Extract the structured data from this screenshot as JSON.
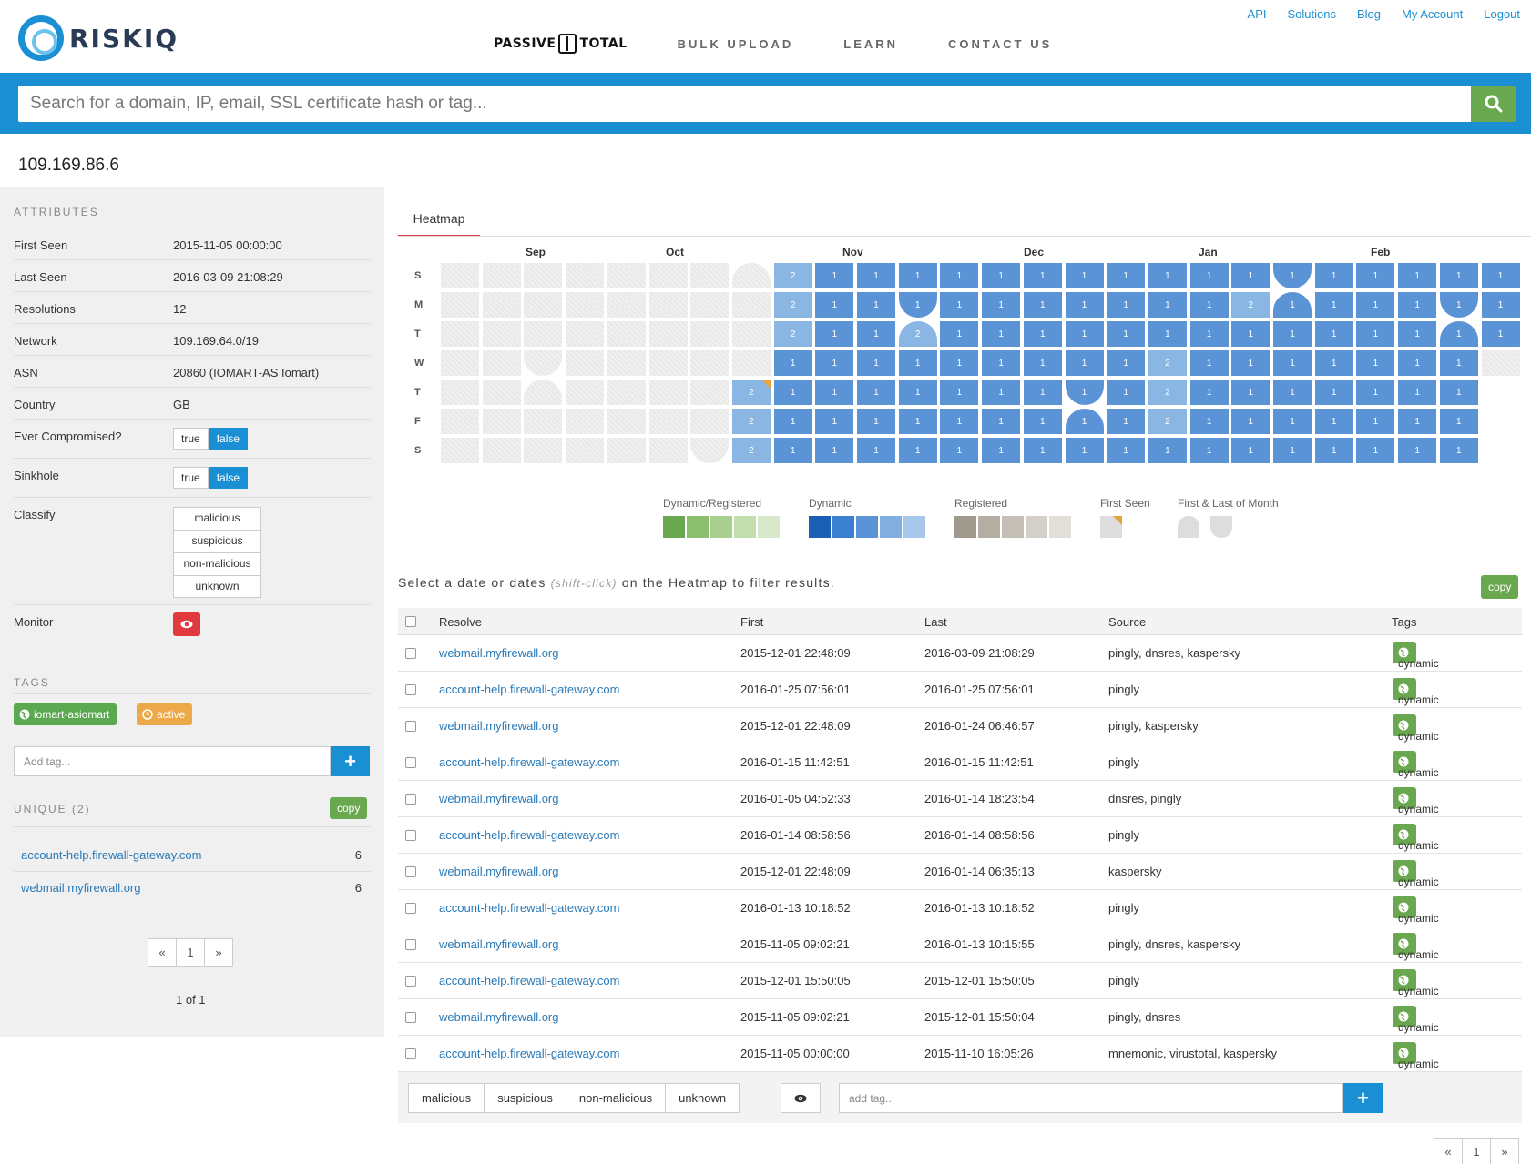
{
  "header": {
    "brand": "RISKIQ",
    "product": "PASSIVE",
    "product2": "TOTAL",
    "nav": [
      "BULK UPLOAD",
      "LEARN",
      "CONTACT US"
    ],
    "top_links": [
      "API",
      "Solutions",
      "Blog",
      "My Account",
      "Logout"
    ]
  },
  "search": {
    "placeholder": "Search for a domain, IP, email, SSL certificate hash or tag..."
  },
  "title": "109.169.86.6",
  "sidebar": {
    "attributes_label": "ATTRIBUTES",
    "attributes": [
      {
        "key": "First Seen",
        "value": "2015-11-05 00:00:00"
      },
      {
        "key": "Last Seen",
        "value": "2016-03-09 21:08:29"
      },
      {
        "key": "Resolutions",
        "value": "12"
      },
      {
        "key": "Network",
        "value": "109.169.64.0/19"
      },
      {
        "key": "ASN",
        "value": "20860 (IOMART-AS Iomart)"
      },
      {
        "key": "Country",
        "value": "GB"
      }
    ],
    "ever_compromised": {
      "label": "Ever Compromised?",
      "true": "true",
      "false": "false",
      "selected": "false"
    },
    "sinkhole": {
      "label": "Sinkhole",
      "true": "true",
      "false": "false",
      "selected": "false"
    },
    "classify": {
      "label": "Classify",
      "options": [
        "malicious",
        "suspicious",
        "non-malicious",
        "unknown"
      ]
    },
    "monitor_label": "Monitor",
    "tags_label": "TAGS",
    "tags": [
      {
        "label": "iomart-asiomart",
        "color": "#5aa84f",
        "icon": "globe-icon"
      },
      {
        "label": "active",
        "color": "#eda949",
        "icon": "clock-icon"
      }
    ],
    "add_tag_placeholder": "Add tag...",
    "unique_label": "UNIQUE (2)",
    "copy_label": "copy",
    "unique": [
      {
        "domain": "account-help.firewall-gateway.com",
        "count": "6"
      },
      {
        "domain": "webmail.myfirewall.org",
        "count": "6"
      }
    ],
    "pager": {
      "prev": "«",
      "page": "1",
      "next": "»"
    },
    "page_info": "1 of 1"
  },
  "heatmap": {
    "tab": "Heatmap",
    "months": [
      "Sep",
      "Oct",
      "Nov",
      "Dec",
      "Jan",
      "Feb"
    ],
    "days": [
      "S",
      "M",
      "T",
      "W",
      "T",
      "F",
      "S"
    ],
    "colors": {
      "dynamic_dark": "#5b94d6",
      "dynamic_light": "#8ab6e3",
      "first_seen": "#e8a33d"
    },
    "legend": {
      "dyn_reg": "Dynamic/Registered",
      "dynamic": "Dynamic",
      "registered": "Registered",
      "first_seen": "First Seen",
      "first_last": "First & Last of Month",
      "dyn_reg_colors": [
        "#6aa84f",
        "#8cbf70",
        "#a8cf90",
        "#c2ddae",
        "#d8e9cb"
      ],
      "dynamic_colors": [
        "#1a5fb4",
        "#3a7fd0",
        "#5b94d6",
        "#82afe0",
        "#a7c8ea"
      ],
      "registered_colors": [
        "#a09a8e",
        "#b3ada2",
        "#c4bfb6",
        "#d4d0c9",
        "#e2dfda"
      ]
    }
  },
  "filter_note": {
    "pre": "Select a date or dates",
    "hint": "(shift-click)",
    "post": "on the Heatmap to filter results."
  },
  "table": {
    "copy_label": "copy",
    "columns": [
      "Resolve",
      "First",
      "Last",
      "Source",
      "Tags"
    ],
    "rows": [
      {
        "resolve": "webmail.myfirewall.org",
        "first": "2015-12-01 22:48:09",
        "last": "2016-03-09 21:08:29",
        "source": "pingly, dnsres, kaspersky",
        "tag": "dynamic"
      },
      {
        "resolve": "account-help.firewall-gateway.com",
        "first": "2016-01-25 07:56:01",
        "last": "2016-01-25 07:56:01",
        "source": "pingly",
        "tag": "dynamic"
      },
      {
        "resolve": "webmail.myfirewall.org",
        "first": "2015-12-01 22:48:09",
        "last": "2016-01-24 06:46:57",
        "source": "pingly, kaspersky",
        "tag": "dynamic"
      },
      {
        "resolve": "account-help.firewall-gateway.com",
        "first": "2016-01-15 11:42:51",
        "last": "2016-01-15 11:42:51",
        "source": "pingly",
        "tag": "dynamic"
      },
      {
        "resolve": "webmail.myfirewall.org",
        "first": "2016-01-05 04:52:33",
        "last": "2016-01-14 18:23:54",
        "source": "dnsres, pingly",
        "tag": "dynamic"
      },
      {
        "resolve": "account-help.firewall-gateway.com",
        "first": "2016-01-14 08:58:56",
        "last": "2016-01-14 08:58:56",
        "source": "pingly",
        "tag": "dynamic"
      },
      {
        "resolve": "webmail.myfirewall.org",
        "first": "2015-12-01 22:48:09",
        "last": "2016-01-14 06:35:13",
        "source": "kaspersky",
        "tag": "dynamic"
      },
      {
        "resolve": "account-help.firewall-gateway.com",
        "first": "2016-01-13 10:18:52",
        "last": "2016-01-13 10:18:52",
        "source": "pingly",
        "tag": "dynamic"
      },
      {
        "resolve": "webmail.myfirewall.org",
        "first": "2015-11-05 09:02:21",
        "last": "2016-01-13 10:15:55",
        "source": "pingly, dnsres, kaspersky",
        "tag": "dynamic"
      },
      {
        "resolve": "account-help.firewall-gateway.com",
        "first": "2015-12-01 15:50:05",
        "last": "2015-12-01 15:50:05",
        "source": "pingly",
        "tag": "dynamic"
      },
      {
        "resolve": "webmail.myfirewall.org",
        "first": "2015-11-05 09:02:21",
        "last": "2015-12-01 15:50:04",
        "source": "pingly, dnsres",
        "tag": "dynamic"
      },
      {
        "resolve": "account-help.firewall-gateway.com",
        "first": "2015-11-05 00:00:00",
        "last": "2015-11-10 16:05:26",
        "source": "mnemonic, virustotal, kaspersky",
        "tag": "dynamic"
      }
    ]
  },
  "actions": {
    "classify": [
      "malicious",
      "suspicious",
      "non-malicious",
      "unknown"
    ],
    "add_tag_placeholder": "add tag..."
  },
  "bottom_pager": {
    "prev": "«",
    "page": "1",
    "next": "»"
  }
}
